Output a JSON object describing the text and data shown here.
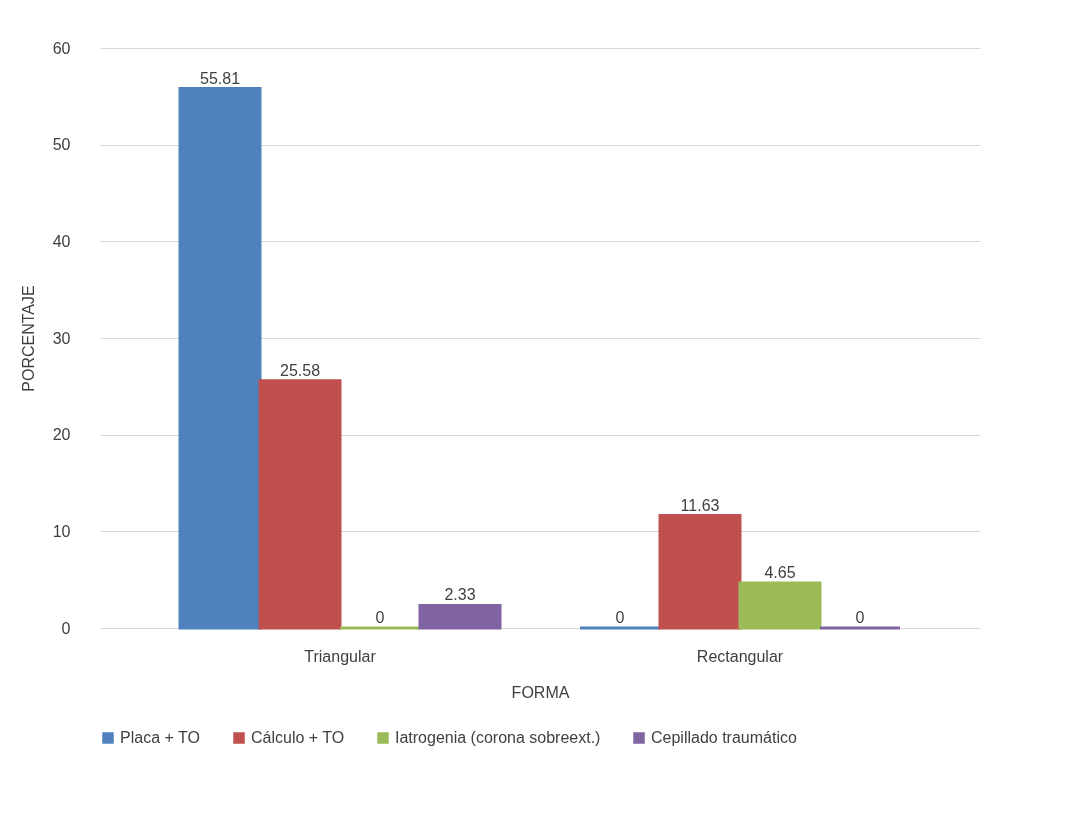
{
  "chart_data": {
    "type": "bar",
    "xlabel": "FORMA",
    "ylabel": "PORCENTAJE",
    "categories": [
      "Triangular",
      "Rectangular"
    ],
    "series": [
      {
        "name": "Placa + TO",
        "color": "#4f81bd",
        "values": [
          55.81,
          0
        ]
      },
      {
        "name": "Cálculo + TO",
        "color": "#c0504d",
        "values": [
          25.58,
          11.63
        ]
      },
      {
        "name": "Iatrogenia (corona sobreext.)",
        "color": "#9bbb59",
        "values": [
          0,
          4.65
        ]
      },
      {
        "name": "Cepillado traumático",
        "color": "#8064a2",
        "values": [
          2.33,
          0
        ]
      }
    ],
    "ylim": [
      0,
      60
    ],
    "yticks": [
      0,
      10,
      20,
      30,
      40,
      50,
      60
    ],
    "grid": "y",
    "legend": "bottom",
    "data_labels": true
  }
}
